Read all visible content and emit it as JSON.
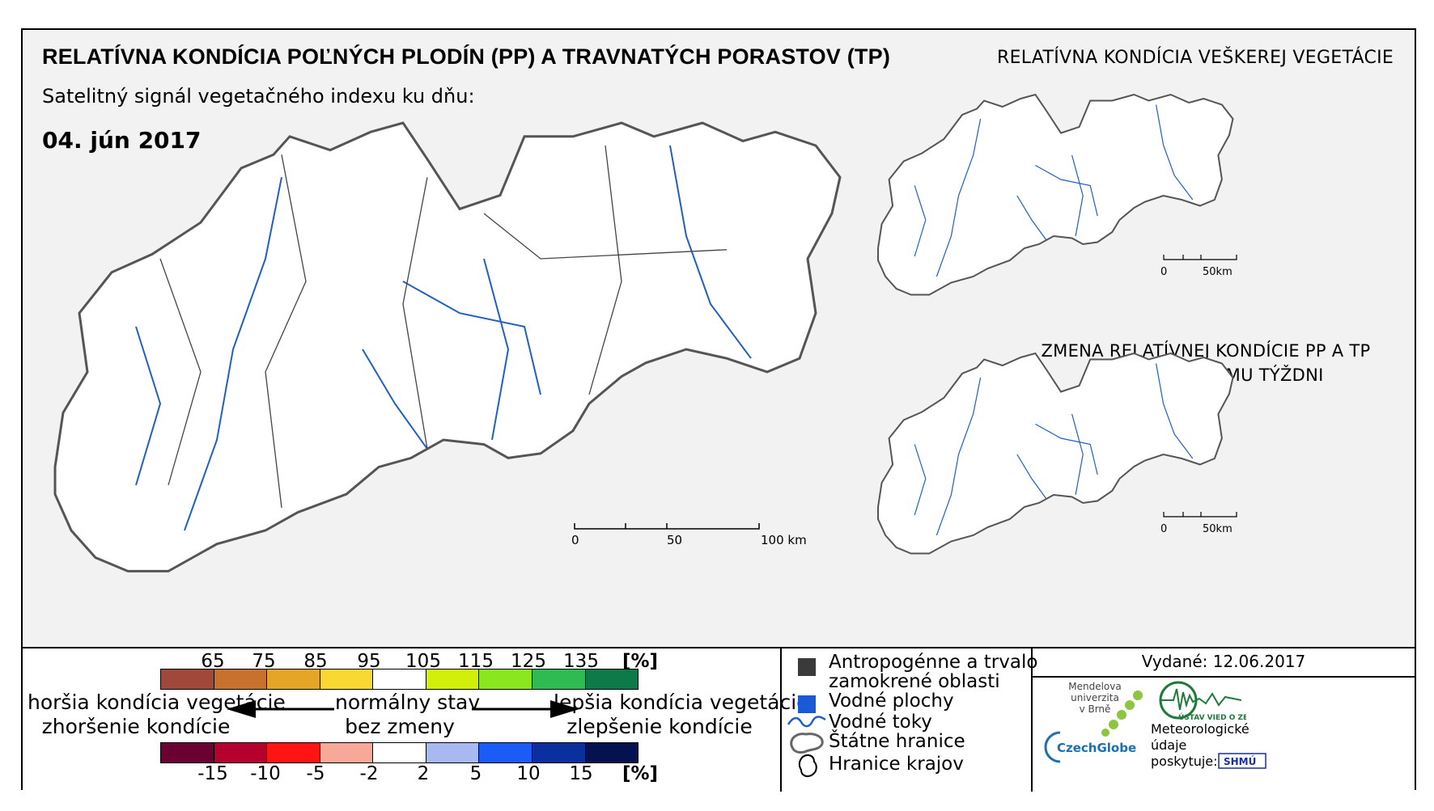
{
  "header": {
    "title": "RELATÍVNA KONDÍCIA POĽNÝCH PLODÍN (PP) A TRAVNATÝCH PORASTOV (TP)",
    "subtitle": "Satelitný signál vegetačného indexu ku dňu:",
    "date": "04. jún 2017"
  },
  "right_maps": {
    "top_title": "RELATÍVNA KONDÍCIA VEŠKEREJ VEGETÁCIE",
    "bottom_title_line1": "ZMENA RELATÍVNEJ KONDÍCIE PP A TP",
    "bottom_title_line2": "OPROTI MINULÉMU TÝŽDNI",
    "scale": {
      "zero": "0",
      "end": "50km"
    }
  },
  "main_map": {
    "scale": {
      "zero": "0",
      "mid": "50",
      "end": "100 km"
    }
  },
  "legend": {
    "condition_ticks": [
      "65",
      "75",
      "85",
      "95",
      "105",
      "115",
      "125",
      "135"
    ],
    "condition_unit": "[%]",
    "condition_colors": [
      "#a0493b",
      "#c8702e",
      "#e5a526",
      "#fad833",
      "#ffffff",
      "#d2ef0c",
      "#8ae61e",
      "#2fba52",
      "#0e7a4a"
    ],
    "change_ticks": [
      "-15",
      "-10",
      "-5",
      "-2",
      "2",
      "5",
      "10",
      "15"
    ],
    "change_unit": "[%]",
    "change_colors": [
      "#6b0033",
      "#b5002d",
      "#ff1414",
      "#f8a898",
      "#ffffff",
      "#a8b8f0",
      "#1a5cf5",
      "#0a2f9e",
      "#06124f"
    ],
    "worse_condition": "horšia kondícia vegetácie",
    "worse_change": "zhoršenie kondície",
    "normal_state": "normálny stav",
    "no_change": "bez zmeny",
    "better_condition": "lepšia kondícia vegetácie",
    "better_change": "zlepšenie kondície"
  },
  "symbols": {
    "anthropogenic_line1": "Antropogénne a trvalo",
    "anthropogenic_line2": "zamokrené oblasti",
    "water_areas": "Vodné plochy",
    "rivers": "Vodné toky",
    "state_borders": "Štátne hranice",
    "region_borders": "Hranice krajov"
  },
  "credits": {
    "issued": "Vydané: 12.06.2017",
    "mendel_line1": "Mendelova",
    "mendel_line2": "univerzita",
    "mendel_line3": "v Brně",
    "czechglobe": "CzechGlobe",
    "uvoz": "ÚSTAV VIED O ZEMI",
    "meteo_line1": "Meteorologické",
    "meteo_line2": "údaje",
    "meteo_line3": "poskytuje:",
    "shmu": "SHMÚ"
  }
}
